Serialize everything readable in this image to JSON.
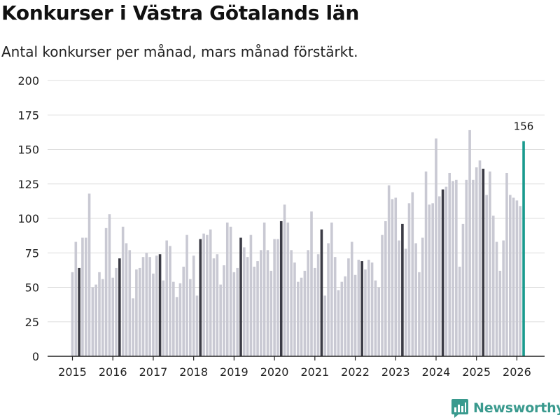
{
  "chart_data": {
    "type": "bar",
    "title": "Konkurser i Västra Götalands län",
    "subtitle": "Antal konkurser per månad, mars månad förstärkt.",
    "ylim": [
      0,
      200
    ],
    "yticks": [
      0,
      25,
      50,
      75,
      100,
      125,
      150,
      175,
      200
    ],
    "xticks": [
      "2015",
      "2016",
      "2017",
      "2018",
      "2019",
      "2020",
      "2021",
      "2022",
      "2023",
      "2024",
      "2025",
      "2026"
    ],
    "start": "2015-01",
    "highlight_month": 3,
    "values": [
      61,
      83,
      64,
      86,
      86,
      118,
      50,
      52,
      61,
      56,
      93,
      103,
      57,
      64,
      71,
      94,
      82,
      77,
      42,
      63,
      64,
      72,
      75,
      72,
      60,
      73,
      74,
      55,
      84,
      80,
      54,
      43,
      53,
      65,
      88,
      56,
      73,
      44,
      85,
      89,
      88,
      92,
      71,
      74,
      52,
      66,
      97,
      94,
      61,
      64,
      86,
      79,
      72,
      88,
      65,
      69,
      77,
      97,
      77,
      62,
      85,
      85,
      98,
      110,
      97,
      77,
      68,
      54,
      57,
      62,
      77,
      105,
      64,
      74,
      92,
      44,
      82,
      97,
      72,
      48,
      54,
      58,
      71,
      83,
      59,
      70,
      69,
      63,
      70,
      68,
      55,
      50,
      88,
      98,
      124,
      114,
      115,
      84,
      96,
      78,
      111,
      119,
      82,
      61,
      86,
      134,
      110,
      111,
      158,
      116,
      121,
      123,
      133,
      127,
      128,
      65,
      96,
      128,
      164,
      128,
      137,
      142,
      136,
      117,
      134,
      102,
      83,
      62,
      84,
      133,
      117,
      115,
      113,
      109,
      156
    ],
    "last_value_label": "156",
    "colors": {
      "normal": "#c9c9d3",
      "march": "#3b3b45",
      "latest": "#1a9a8e",
      "grid": "#dddddd"
    }
  },
  "brand": {
    "name": "Newsworthy",
    "icon": "newsworthy-logo-icon"
  }
}
